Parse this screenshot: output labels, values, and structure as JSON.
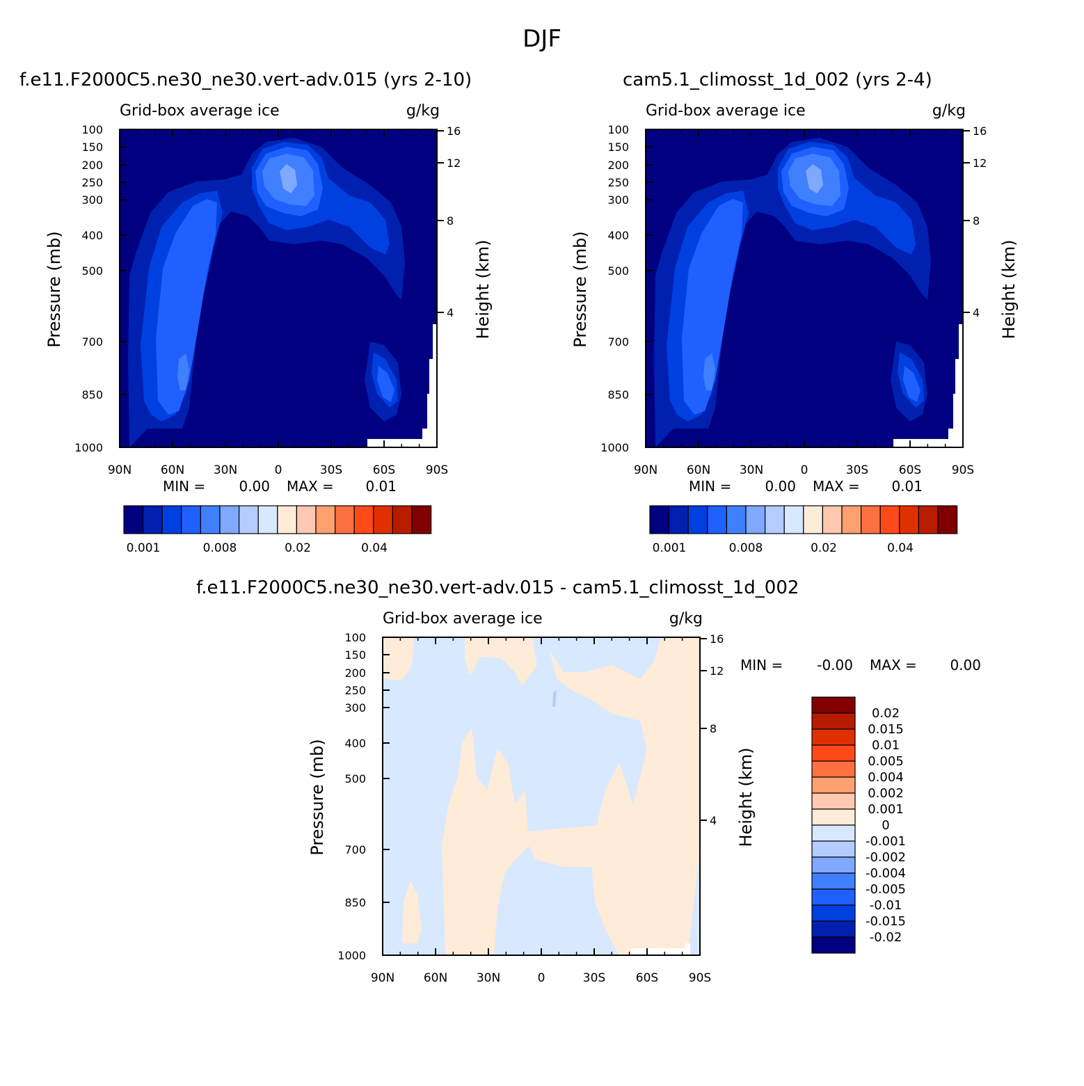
{
  "figure_title": "DJF",
  "colors": {
    "abs_levels": [
      "#000080",
      "#0020b0",
      "#0040e0",
      "#2060ff",
      "#4080ff",
      "#80a8ff",
      "#b4ccff",
      "#d8e8ff",
      "#ffecd8",
      "#ffc8b0",
      "#ffa070",
      "#ff7040",
      "#ff4a18",
      "#e03000",
      "#b81c00",
      "#800000"
    ],
    "diff_levels": [
      "#000080",
      "#0020b0",
      "#0040e0",
      "#2060ff",
      "#4080ff",
      "#80a8ff",
      "#b4ccff",
      "#d8e8ff",
      "#ffecd8",
      "#ffc8b0",
      "#ffa070",
      "#ff7040",
      "#ff4a18",
      "#e03000",
      "#b81c00",
      "#800000"
    ]
  },
  "chart_data": [
    {
      "type": "contour",
      "title": "f.e11.F2000C5.ne30_ne30.vert-adv.015 (yrs 2-10)",
      "subtitle_left": "Grid-box average ice",
      "subtitle_right": "g/kg",
      "xlabel": "",
      "ylabel": "Pressure (mb)",
      "y2label": "Height (km)",
      "xticks": [
        "90N",
        "60N",
        "30N",
        "0",
        "30S",
        "60S",
        "90S"
      ],
      "yticks": [
        "100",
        "150",
        "200",
        "250",
        "300",
        "400",
        "500",
        "700",
        "850",
        "1000"
      ],
      "y2ticks": [
        "16",
        "12",
        "8",
        "4"
      ],
      "stats": {
        "min_label": "MIN =",
        "min": "0.00",
        "max_label": "MAX =",
        "max": "0.01"
      },
      "colorbar_labels": [
        "0.001",
        "0.008",
        "0.02",
        "0.04"
      ]
    },
    {
      "type": "contour",
      "title": "cam5.1_climosst_1d_002 (yrs 2-4)",
      "subtitle_left": "Grid-box average ice",
      "subtitle_right": "g/kg",
      "xlabel": "",
      "ylabel": "Pressure (mb)",
      "y2label": "Height (km)",
      "xticks": [
        "90N",
        "60N",
        "30N",
        "0",
        "30S",
        "60S",
        "90S"
      ],
      "yticks": [
        "100",
        "150",
        "200",
        "250",
        "300",
        "400",
        "500",
        "700",
        "850",
        "1000"
      ],
      "y2ticks": [
        "16",
        "12",
        "8",
        "4"
      ],
      "stats": {
        "min_label": "MIN =",
        "min": "0.00",
        "max_label": "MAX =",
        "max": "0.01"
      },
      "colorbar_labels": [
        "0.001",
        "0.008",
        "0.02",
        "0.04"
      ]
    },
    {
      "type": "contour",
      "title": "f.e11.F2000C5.ne30_ne30.vert-adv.015 - cam5.1_climosst_1d_002",
      "subtitle_left": "Grid-box average ice",
      "subtitle_right": "g/kg",
      "xlabel": "",
      "ylabel": "Pressure (mb)",
      "y2label": "Height (km)",
      "xticks": [
        "90N",
        "60N",
        "30N",
        "0",
        "30S",
        "60S",
        "90S"
      ],
      "yticks": [
        "100",
        "150",
        "200",
        "250",
        "300",
        "400",
        "500",
        "700",
        "850",
        "1000"
      ],
      "y2ticks": [
        "16",
        "12",
        "8",
        "4"
      ],
      "stats": {
        "min_label": "MIN =",
        "min": "-0.00",
        "max_label": "MAX =",
        "max": "0.00"
      },
      "colorbar_labels": [
        "0.02",
        "0.015",
        "0.01",
        "0.005",
        "0.004",
        "0.002",
        "0.001",
        "0",
        "-0.001",
        "-0.002",
        "-0.004",
        "-0.005",
        "-0.01",
        "-0.015",
        "-0.02"
      ]
    }
  ]
}
